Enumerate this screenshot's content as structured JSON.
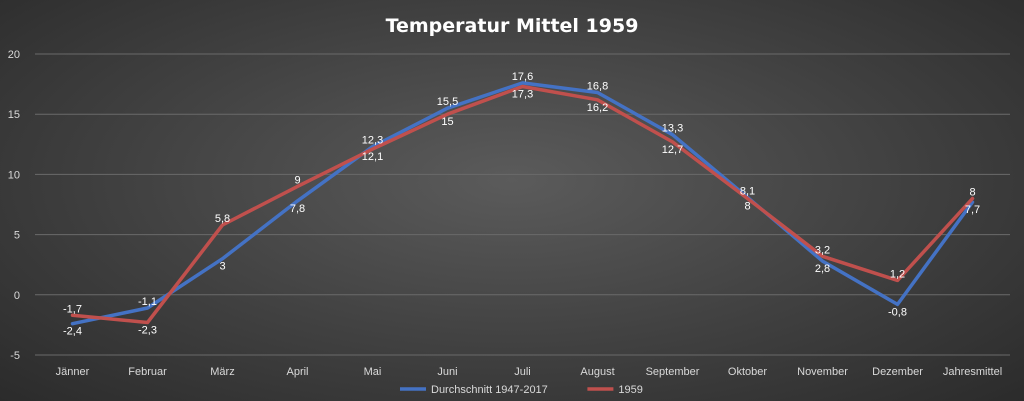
{
  "chart_data": {
    "type": "line",
    "title": "Temperatur Mittel 1959",
    "categories": [
      "Jänner",
      "Februar",
      "März",
      "April",
      "Mai",
      "Juni",
      "Juli",
      "August",
      "September",
      "Oktober",
      "November",
      "Dezember",
      "Jahresmittel"
    ],
    "ylim": [
      -5,
      20
    ],
    "yticks": [
      -5,
      0,
      5,
      10,
      15,
      20
    ],
    "grid": true,
    "legend_position": "bottom",
    "series": [
      {
        "name": "Durchschnitt 1947-2017",
        "color": "#4472c4",
        "values": [
          -2.4,
          -1.1,
          3,
          7.8,
          12.3,
          15.5,
          17.6,
          16.8,
          13.3,
          8.1,
          2.8,
          -0.8,
          7.7
        ],
        "labels": [
          "-2,4",
          "-1,1",
          "3",
          "7,8",
          "12,3",
          "15,5",
          "17,6",
          "16,8",
          "13,3",
          "8,1",
          "2,8",
          "-0,8",
          "7,7"
        ]
      },
      {
        "name": "1959",
        "color": "#c0504d",
        "values": [
          -1.7,
          -2.3,
          5.8,
          9,
          12.1,
          15,
          17.3,
          16.2,
          12.7,
          8,
          3.2,
          1.2,
          8
        ],
        "labels": [
          "-1,7",
          "-2,3",
          "5,8",
          "9",
          "12,1",
          "15",
          "17,3",
          "16,2",
          "12,7",
          "8",
          "3,2",
          "1,2",
          "8"
        ]
      }
    ]
  }
}
